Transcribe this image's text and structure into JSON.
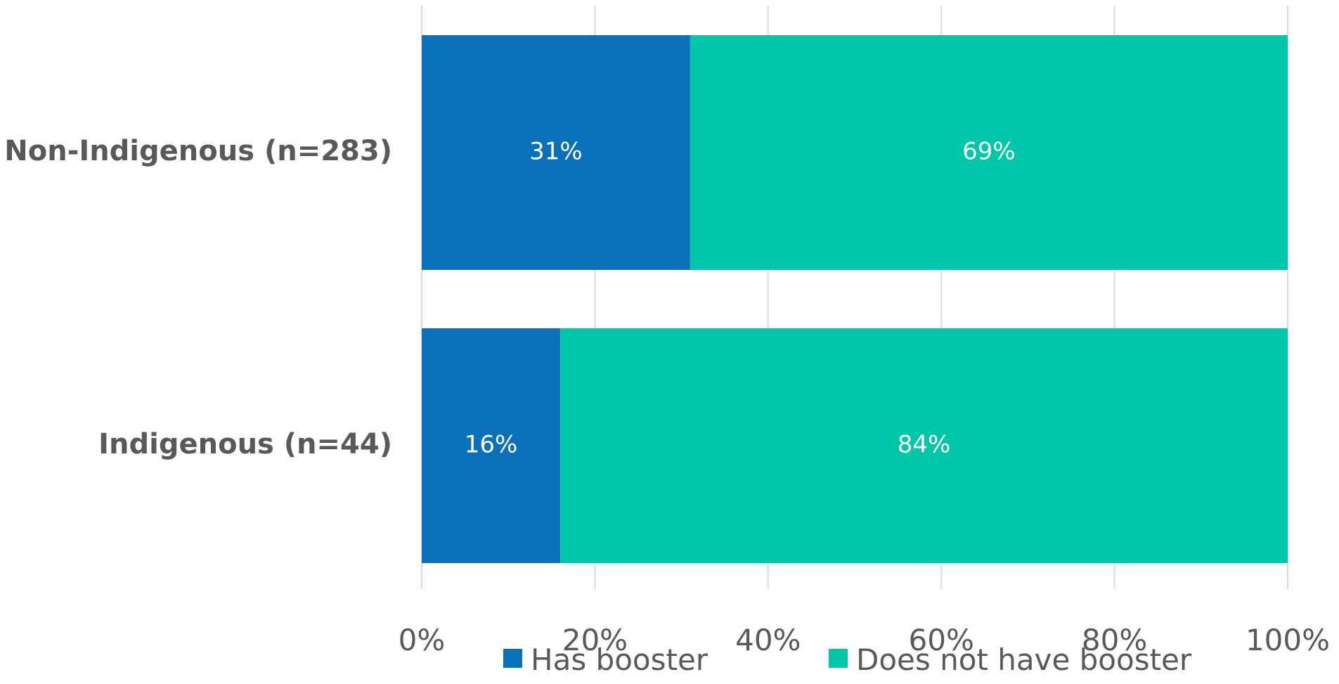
{
  "chart_data": {
    "type": "bar",
    "orientation": "horizontal",
    "stacked": true,
    "categories": [
      "Non-Indigenous (n=283)",
      "Indigenous (n=44)"
    ],
    "series": [
      {
        "name": "Has booster",
        "values": [
          31,
          16
        ],
        "labels": [
          "31%",
          "16%"
        ],
        "color": "#0A70B9"
      },
      {
        "name": "Does not have booster",
        "values": [
          69,
          84
        ],
        "labels": [
          "69%",
          "84%"
        ],
        "color": "#00C6AA"
      }
    ],
    "xlim": [
      0,
      100
    ],
    "x_ticks": [
      "0%",
      "20%",
      "40%",
      "60%",
      "80%",
      "100%"
    ],
    "grid": true,
    "legend_position": "bottom",
    "title": "",
    "xlabel": "",
    "ylabel": ""
  }
}
